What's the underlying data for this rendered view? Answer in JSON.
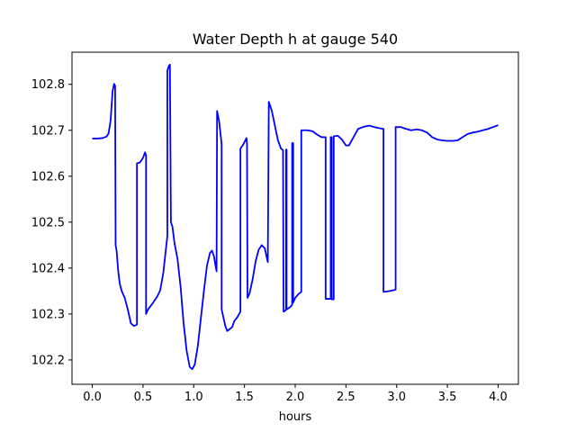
{
  "chart_data": {
    "type": "line",
    "title": "Water Depth h at gauge 540",
    "xlabel": "hours",
    "ylabel": "",
    "xlim": [
      -0.2,
      4.2
    ],
    "ylim": [
      102.147,
      102.87
    ],
    "xticks": [
      0.0,
      0.5,
      1.0,
      1.5,
      2.0,
      2.5,
      3.0,
      3.5,
      4.0
    ],
    "xtick_labels": [
      "0.0",
      "0.5",
      "1.0",
      "1.5",
      "2.0",
      "2.5",
      "3.0",
      "3.5",
      "4.0"
    ],
    "yticks": [
      102.2,
      102.3,
      102.4,
      102.5,
      102.6,
      102.7,
      102.8
    ],
    "ytick_labels": [
      "102.2",
      "102.3",
      "102.4",
      "102.5",
      "102.6",
      "102.7",
      "102.8"
    ],
    "grid": false,
    "series": [
      {
        "color": "#0000ff",
        "points": [
          [
            0.0,
            102.682
          ],
          [
            0.05,
            102.682
          ],
          [
            0.1,
            102.683
          ],
          [
            0.14,
            102.686
          ],
          [
            0.16,
            102.693
          ],
          [
            0.18,
            102.72
          ],
          [
            0.2,
            102.785
          ],
          [
            0.215,
            102.801
          ],
          [
            0.225,
            102.797
          ],
          [
            0.23,
            102.45
          ],
          [
            0.24,
            102.437
          ],
          [
            0.255,
            102.395
          ],
          [
            0.27,
            102.367
          ],
          [
            0.29,
            102.35
          ],
          [
            0.32,
            102.335
          ],
          [
            0.35,
            102.31
          ],
          [
            0.38,
            102.28
          ],
          [
            0.41,
            102.274
          ],
          [
            0.44,
            102.277
          ],
          [
            0.44,
            102.628
          ],
          [
            0.47,
            102.63
          ],
          [
            0.5,
            102.64
          ],
          [
            0.52,
            102.652
          ],
          [
            0.53,
            102.645
          ],
          [
            0.53,
            102.3
          ],
          [
            0.55,
            102.31
          ],
          [
            0.6,
            102.325
          ],
          [
            0.64,
            102.338
          ],
          [
            0.67,
            102.352
          ],
          [
            0.7,
            102.39
          ],
          [
            0.72,
            102.43
          ],
          [
            0.74,
            102.47
          ],
          [
            0.74,
            102.83
          ],
          [
            0.755,
            102.84
          ],
          [
            0.765,
            102.843
          ],
          [
            0.775,
            102.5
          ],
          [
            0.79,
            102.49
          ],
          [
            0.81,
            102.455
          ],
          [
            0.84,
            102.42
          ],
          [
            0.87,
            102.36
          ],
          [
            0.9,
            102.28
          ],
          [
            0.93,
            102.22
          ],
          [
            0.96,
            102.185
          ],
          [
            0.985,
            102.18
          ],
          [
            1.01,
            102.19
          ],
          [
            1.04,
            102.23
          ],
          [
            1.07,
            102.29
          ],
          [
            1.1,
            102.35
          ],
          [
            1.13,
            102.405
          ],
          [
            1.16,
            102.433
          ],
          [
            1.18,
            102.438
          ],
          [
            1.2,
            102.425
          ],
          [
            1.215,
            102.405
          ],
          [
            1.225,
            102.393
          ],
          [
            1.23,
            102.742
          ],
          [
            1.25,
            102.72
          ],
          [
            1.275,
            102.67
          ],
          [
            1.275,
            102.31
          ],
          [
            1.29,
            102.295
          ],
          [
            1.31,
            102.275
          ],
          [
            1.33,
            102.263
          ],
          [
            1.36,
            102.268
          ],
          [
            1.38,
            102.272
          ],
          [
            1.4,
            102.285
          ],
          [
            1.43,
            102.293
          ],
          [
            1.46,
            102.305
          ],
          [
            1.46,
            102.66
          ],
          [
            1.49,
            102.67
          ],
          [
            1.52,
            102.683
          ],
          [
            1.525,
            102.67
          ],
          [
            1.53,
            102.335
          ],
          [
            1.55,
            102.345
          ],
          [
            1.58,
            102.375
          ],
          [
            1.61,
            102.415
          ],
          [
            1.64,
            102.44
          ],
          [
            1.67,
            102.45
          ],
          [
            1.7,
            102.443
          ],
          [
            1.72,
            102.423
          ],
          [
            1.73,
            102.413
          ],
          [
            1.74,
            102.762
          ],
          [
            1.77,
            102.742
          ],
          [
            1.8,
            102.71
          ],
          [
            1.83,
            102.678
          ],
          [
            1.86,
            102.66
          ],
          [
            1.88,
            102.657
          ],
          [
            1.885,
            102.305
          ],
          [
            1.9,
            102.307
          ],
          [
            1.91,
            102.31
          ],
          [
            1.91,
            102.658
          ],
          [
            1.915,
            102.658
          ],
          [
            1.915,
            102.31
          ],
          [
            1.95,
            102.315
          ],
          [
            1.97,
            102.32
          ],
          [
            1.97,
            102.672
          ],
          [
            1.98,
            102.672
          ],
          [
            1.98,
            102.325
          ],
          [
            2.0,
            102.335
          ],
          [
            2.03,
            102.343
          ],
          [
            2.06,
            102.348
          ],
          [
            2.06,
            102.7
          ],
          [
            2.12,
            102.7
          ],
          [
            2.17,
            102.698
          ],
          [
            2.22,
            102.69
          ],
          [
            2.26,
            102.685
          ],
          [
            2.3,
            102.685
          ],
          [
            2.3,
            102.333
          ],
          [
            2.35,
            102.333
          ],
          [
            2.35,
            102.685
          ],
          [
            2.36,
            102.685
          ],
          [
            2.36,
            102.332
          ],
          [
            2.38,
            102.332
          ],
          [
            2.38,
            102.687
          ],
          [
            2.42,
            102.688
          ],
          [
            2.46,
            102.68
          ],
          [
            2.5,
            102.667
          ],
          [
            2.53,
            102.667
          ],
          [
            2.57,
            102.683
          ],
          [
            2.62,
            102.703
          ],
          [
            2.68,
            102.708
          ],
          [
            2.73,
            102.71
          ],
          [
            2.78,
            102.707
          ],
          [
            2.82,
            102.705
          ],
          [
            2.87,
            102.703
          ],
          [
            2.87,
            102.348
          ],
          [
            2.93,
            102.35
          ],
          [
            2.99,
            102.353
          ],
          [
            2.99,
            102.707
          ],
          [
            3.04,
            102.707
          ],
          [
            3.08,
            102.704
          ],
          [
            3.14,
            102.7
          ],
          [
            3.2,
            102.702
          ],
          [
            3.25,
            102.7
          ],
          [
            3.3,
            102.695
          ],
          [
            3.35,
            102.685
          ],
          [
            3.4,
            102.68
          ],
          [
            3.45,
            102.678
          ],
          [
            3.5,
            102.677
          ],
          [
            3.55,
            102.677
          ],
          [
            3.6,
            102.678
          ],
          [
            3.65,
            102.685
          ],
          [
            3.7,
            102.692
          ],
          [
            3.75,
            102.695
          ],
          [
            3.8,
            102.697
          ],
          [
            3.85,
            102.7
          ],
          [
            3.9,
            102.703
          ],
          [
            3.95,
            102.707
          ],
          [
            4.0,
            102.711
          ]
        ]
      }
    ]
  }
}
